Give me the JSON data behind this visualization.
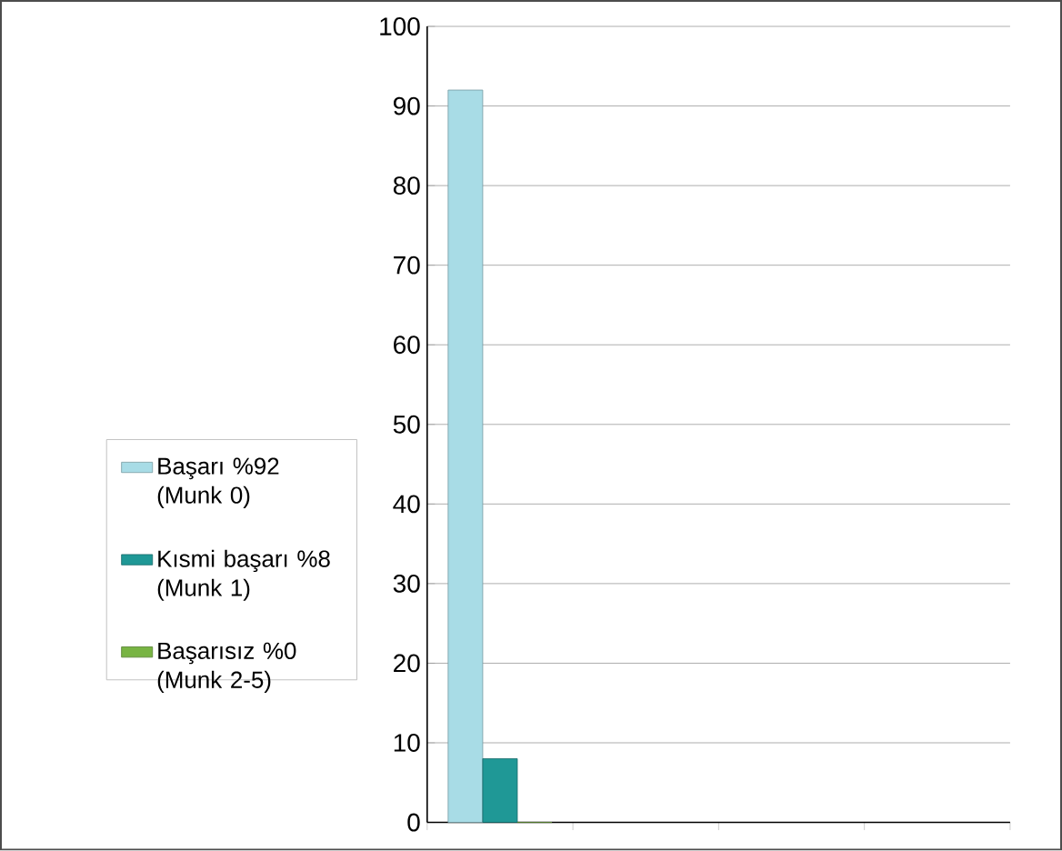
{
  "chart_data": {
    "type": "bar",
    "categories": [
      null,
      null,
      null,
      null
    ],
    "series": [
      {
        "name": "Başarı %92 (Munk 0)",
        "color": "#a8dce6",
        "values": [
          92,
          null,
          null,
          null
        ]
      },
      {
        "name": "Kısmi başarı %8 (Munk 1)",
        "color": "#1f9896",
        "values": [
          8,
          null,
          null,
          null
        ]
      },
      {
        "name": "Başarısız %0 (Munk 2-5)",
        "color": "#78b443",
        "values": [
          0,
          null,
          null,
          null
        ]
      }
    ],
    "ylim": [
      0,
      100
    ],
    "yticks": [
      0,
      10,
      20,
      30,
      40,
      50,
      60,
      70,
      80,
      90,
      100
    ],
    "grid": "y",
    "legend": "left",
    "tick_labels": "y"
  }
}
